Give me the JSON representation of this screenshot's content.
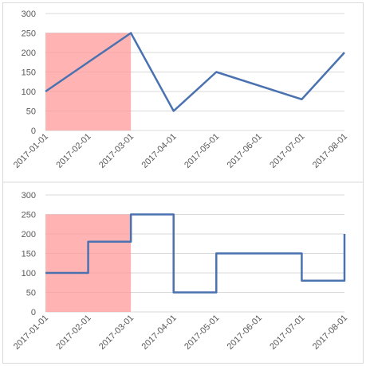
{
  "chart_data": [
    {
      "type": "line",
      "x": [
        "2017-01-01",
        "2017-02-01",
        "2017-03-01",
        "2017-04-01",
        "2017-05-01",
        "2017-06-01",
        "2017-07-01",
        "2017-08-01"
      ],
      "series": [
        {
          "points": [
            {
              "x": "2017-01-01",
              "y": 100
            },
            {
              "x": "2017-03-01",
              "y": 250
            },
            {
              "x": "2017-04-01",
              "y": 50
            },
            {
              "x": "2017-05-01",
              "y": 150
            },
            {
              "x": "2017-07-01",
              "y": 80
            },
            {
              "x": "2017-08-01",
              "y": 200
            }
          ],
          "interpolation": "linear"
        }
      ],
      "highlight": {
        "x_start": "2017-01-01",
        "x_end": "2017-03-01",
        "y_start": 0,
        "y_end": 250
      },
      "yticks": [
        0,
        50,
        100,
        150,
        200,
        250,
        300
      ],
      "ylim": [
        0,
        300
      ],
      "grid": true,
      "title": "",
      "xlabel": "",
      "ylabel": ""
    },
    {
      "type": "line",
      "x": [
        "2017-01-01",
        "2017-02-01",
        "2017-03-01",
        "2017-04-01",
        "2017-05-01",
        "2017-06-01",
        "2017-07-01",
        "2017-08-01"
      ],
      "series": [
        {
          "points": [
            {
              "x": "2017-01-01",
              "y": 100
            },
            {
              "x": "2017-02-01",
              "y": 180
            },
            {
              "x": "2017-03-01",
              "y": 250
            },
            {
              "x": "2017-04-01",
              "y": 50
            },
            {
              "x": "2017-05-01",
              "y": 150
            },
            {
              "x": "2017-07-01",
              "y": 80
            },
            {
              "x": "2017-08-01",
              "y": 200
            }
          ],
          "interpolation": "step"
        }
      ],
      "highlight": {
        "x_start": "2017-01-01",
        "x_end": "2017-03-01",
        "y_start": 0,
        "y_end": 250
      },
      "yticks": [
        0,
        50,
        100,
        150,
        200,
        250,
        300
      ],
      "ylim": [
        0,
        300
      ],
      "grid": true,
      "title": "",
      "xlabel": "",
      "ylabel": ""
    }
  ],
  "colors": {
    "line": "#4a72b0",
    "highlight": "#ff9999",
    "gridline": "#d9d9d9",
    "tick_text": "#595959",
    "border": "#d9d9d9"
  }
}
